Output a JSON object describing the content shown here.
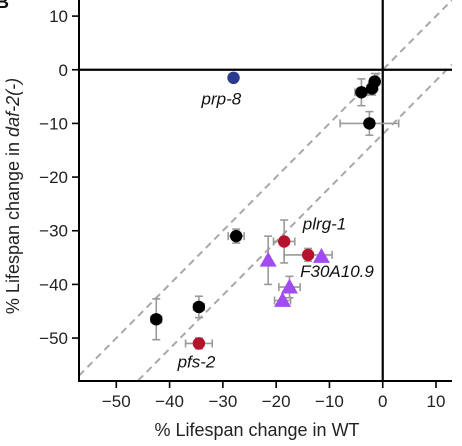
{
  "chart_data": {
    "type": "scatter",
    "panel_label": "B",
    "title": "",
    "xlabel": "% Lifespan change in WT",
    "ylabel_parts": [
      "% Lifespan change in ",
      "daf-2(-)"
    ],
    "xlim": [
      -57,
      13
    ],
    "ylim": [
      -58,
      13
    ],
    "xticks": [
      -50,
      -40,
      -30,
      -20,
      -10,
      0,
      10
    ],
    "yticks": [
      10,
      0,
      -10,
      -20,
      -30,
      -40,
      -50
    ],
    "zero_lines": {
      "x": 0,
      "y": 0
    },
    "guide_lines": [
      {
        "style": "dashed",
        "slope": 1,
        "intercept": 0
      },
      {
        "style": "dashed",
        "slope": 1,
        "intercept": -12
      }
    ],
    "colors": {
      "black": "#000000",
      "blue": "#2b3a8f",
      "red": "#b5122b",
      "purple": "#a04cf0",
      "errorbar": "#9a9a9a",
      "guide": "#a8a8a8"
    },
    "points": [
      {
        "x": -28,
        "y": -1.5,
        "marker": "circle",
        "color": "blue"
      },
      {
        "x": -1.5,
        "y": -2.2,
        "xerr": 0.8,
        "yerr": 1.5,
        "marker": "circle",
        "color": "black"
      },
      {
        "x": -2.0,
        "y": -3.5,
        "xerr": 0.8,
        "yerr": 1.2,
        "marker": "circle",
        "color": "black"
      },
      {
        "x": -4.0,
        "y": -4.2,
        "xerr": 1.2,
        "yerr": 2.5,
        "marker": "circle",
        "color": "black"
      },
      {
        "x": -2.5,
        "y": -10.0,
        "xerr": 5.5,
        "yerr": 2.2,
        "marker": "circle",
        "color": "black"
      },
      {
        "x": -27.5,
        "y": -31.0,
        "xerr": 1.5,
        "yerr": 1.3,
        "marker": "circle",
        "color": "black"
      },
      {
        "x": -34.5,
        "y": -44.2,
        "xerr": 1.0,
        "yerr": 2.0,
        "marker": "circle",
        "color": "black"
      },
      {
        "x": -42.5,
        "y": -46.5,
        "xerr": 1.0,
        "yerr": 3.8,
        "marker": "circle",
        "color": "black"
      },
      {
        "x": -18.5,
        "y": -32.0,
        "xerr": 2.0,
        "yerr": 4.0,
        "marker": "circle",
        "color": "red"
      },
      {
        "x": -14.0,
        "y": -34.5,
        "xerr": 4.5,
        "yerr": 1.2,
        "marker": "circle",
        "color": "red"
      },
      {
        "x": -34.5,
        "y": -51.0,
        "xerr": 2.5,
        "yerr": 1.0,
        "marker": "circle",
        "color": "red"
      },
      {
        "x": -21.5,
        "y": -35.5,
        "yerr": 4.5,
        "marker": "triangle",
        "color": "purple"
      },
      {
        "x": -11.5,
        "y": -34.8,
        "marker": "triangle",
        "color": "purple"
      },
      {
        "x": -17.5,
        "y": -40.5,
        "xerr": 2.0,
        "yerr": 2.0,
        "marker": "triangle",
        "color": "purple"
      },
      {
        "x": -18.8,
        "y": -43.0,
        "xerr": 1.5,
        "marker": "triangle",
        "color": "purple"
      }
    ],
    "annotations": [
      {
        "text": "prp-8",
        "x": -34,
        "y": -6.5,
        "anchor": "start"
      },
      {
        "text": "plrg-1",
        "x": -15,
        "y": -29.8,
        "anchor": "start"
      },
      {
        "text": "F30A10.9",
        "x": -15.5,
        "y": -38.6,
        "anchor": "start"
      },
      {
        "text": "pfs-2",
        "x": -38.5,
        "y": -55.5,
        "anchor": "start"
      }
    ]
  }
}
